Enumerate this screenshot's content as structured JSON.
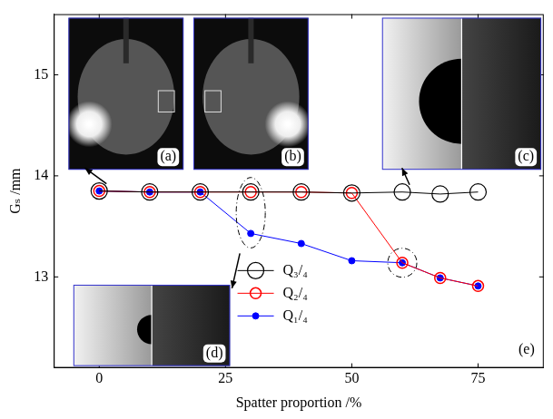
{
  "chart_data": {
    "type": "line",
    "x_label": "Spatter proportion /%",
    "y_label": "Gₛ /mm",
    "x": [
      0,
      10,
      20,
      30,
      40,
      50,
      60,
      67.5,
      75
    ],
    "series": [
      {
        "name": "Q₃/₄",
        "color": "#000000",
        "marker": "open_circle",
        "values": [
          13.85,
          13.84,
          13.84,
          13.84,
          13.84,
          13.83,
          13.84,
          13.82,
          13.84
        ]
      },
      {
        "name": "Q₂/₄",
        "color": "#ff0000",
        "marker": "open_circle",
        "values": [
          13.85,
          13.84,
          13.84,
          13.84,
          13.84,
          13.83,
          13.14,
          12.99,
          12.91
        ]
      },
      {
        "name": "Q₁/₄",
        "color": "#0000ff",
        "marker": "filled_circle",
        "values": [
          13.85,
          13.84,
          13.84,
          13.43,
          13.33,
          13.16,
          13.14,
          12.99,
          12.91
        ]
      }
    ],
    "xlim": [
      -9,
      88
    ],
    "xticks": [
      0,
      25,
      50,
      75
    ],
    "ylim": [
      12.1,
      15.6
    ],
    "yticks": [
      13,
      14,
      15
    ],
    "grid": false,
    "legend": "lower center",
    "annotations": [
      "(a)",
      "(b)",
      "(c)",
      "(d)",
      "(e)"
    ]
  }
}
